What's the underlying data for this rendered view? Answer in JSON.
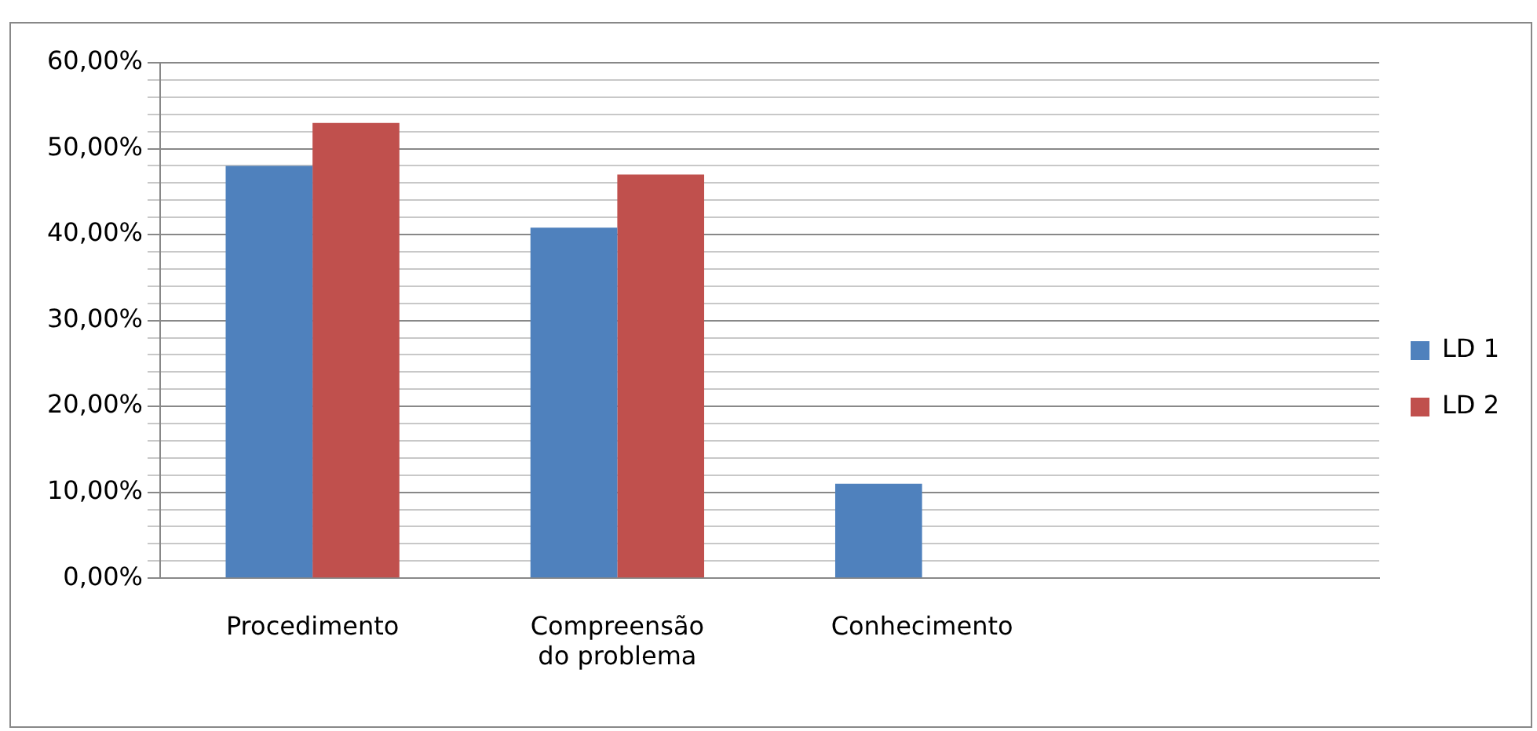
{
  "chart_data": {
    "type": "bar",
    "categories": [
      "Procedimento",
      "Compreensão do problema",
      "Conhecimento",
      null
    ],
    "series": [
      {
        "name": "LD 1",
        "color": "#4f81bd",
        "values": [
          48,
          40.8,
          11,
          null
        ]
      },
      {
        "name": "LD 2",
        "color": "#c0504d",
        "values": [
          53,
          47,
          0,
          null
        ]
      }
    ],
    "ylim": [
      0,
      60
    ],
    "yticks": [
      {
        "value": 0,
        "label": "0,00%"
      },
      {
        "value": 2,
        "label": null
      },
      {
        "value": 4,
        "label": null
      },
      {
        "value": 6,
        "label": null
      },
      {
        "value": 8,
        "label": null
      },
      {
        "value": 10,
        "label": "10,00%"
      },
      {
        "value": 12,
        "label": null
      },
      {
        "value": 14,
        "label": null
      },
      {
        "value": 16,
        "label": null
      },
      {
        "value": 18,
        "label": null
      },
      {
        "value": 20,
        "label": "20,00%"
      },
      {
        "value": 22,
        "label": null
      },
      {
        "value": 24,
        "label": null
      },
      {
        "value": 26,
        "label": null
      },
      {
        "value": 28,
        "label": null
      },
      {
        "value": 30,
        "label": "30,00%"
      },
      {
        "value": 32,
        "label": null
      },
      {
        "value": 34,
        "label": null
      },
      {
        "value": 36,
        "label": null
      },
      {
        "value": 38,
        "label": null
      },
      {
        "value": 40,
        "label": "40,00%"
      },
      {
        "value": 42,
        "label": null
      },
      {
        "value": 44,
        "label": null
      },
      {
        "value": 46,
        "label": null
      },
      {
        "value": 48,
        "label": null
      },
      {
        "value": 50,
        "label": "50,00%"
      },
      {
        "value": 52,
        "label": null
      },
      {
        "value": 54,
        "label": null
      },
      {
        "value": 56,
        "label": null
      },
      {
        "value": 58,
        "label": null
      },
      {
        "value": 60,
        "label": "60,00%"
      }
    ],
    "grid": "y",
    "legend": "right"
  }
}
